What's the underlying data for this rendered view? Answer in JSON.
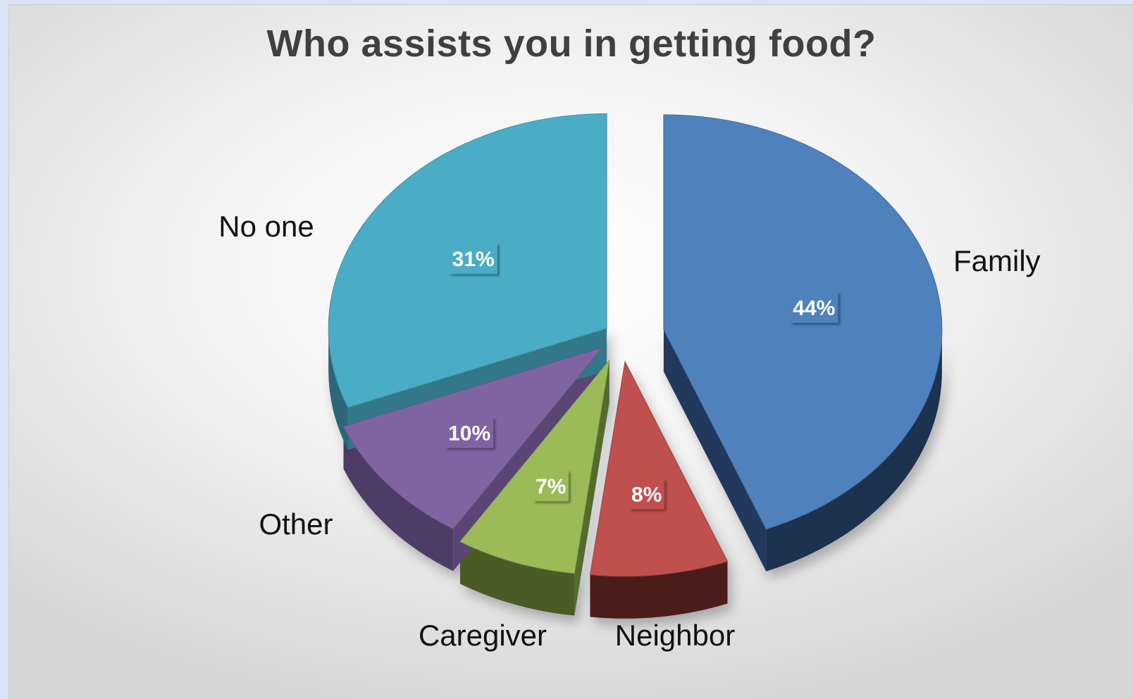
{
  "chart_data": {
    "type": "pie",
    "style": "3d-exploded",
    "title": "Who assists you in getting food?",
    "slices": [
      {
        "label": "Family",
        "value": 44,
        "value_label": "44%",
        "color": "#4f81bd",
        "side_color": "#1f3150"
      },
      {
        "label": "Neighbor",
        "value": 8,
        "value_label": "8%",
        "color": "#c0504d",
        "side_color": "#4b1e1d"
      },
      {
        "label": "Caregiver",
        "value": 7,
        "value_label": "7%",
        "color": "#9bbb59",
        "side_color": "#4a5c28"
      },
      {
        "label": "Other",
        "value": 10,
        "value_label": "10%",
        "color": "#8064a2",
        "side_color": "#4e3c66"
      },
      {
        "label": "No one",
        "value": 31,
        "value_label": "31%",
        "color": "#4bacc6",
        "side_color": "#2a6878"
      }
    ],
    "legend": "none",
    "grid": false
  }
}
